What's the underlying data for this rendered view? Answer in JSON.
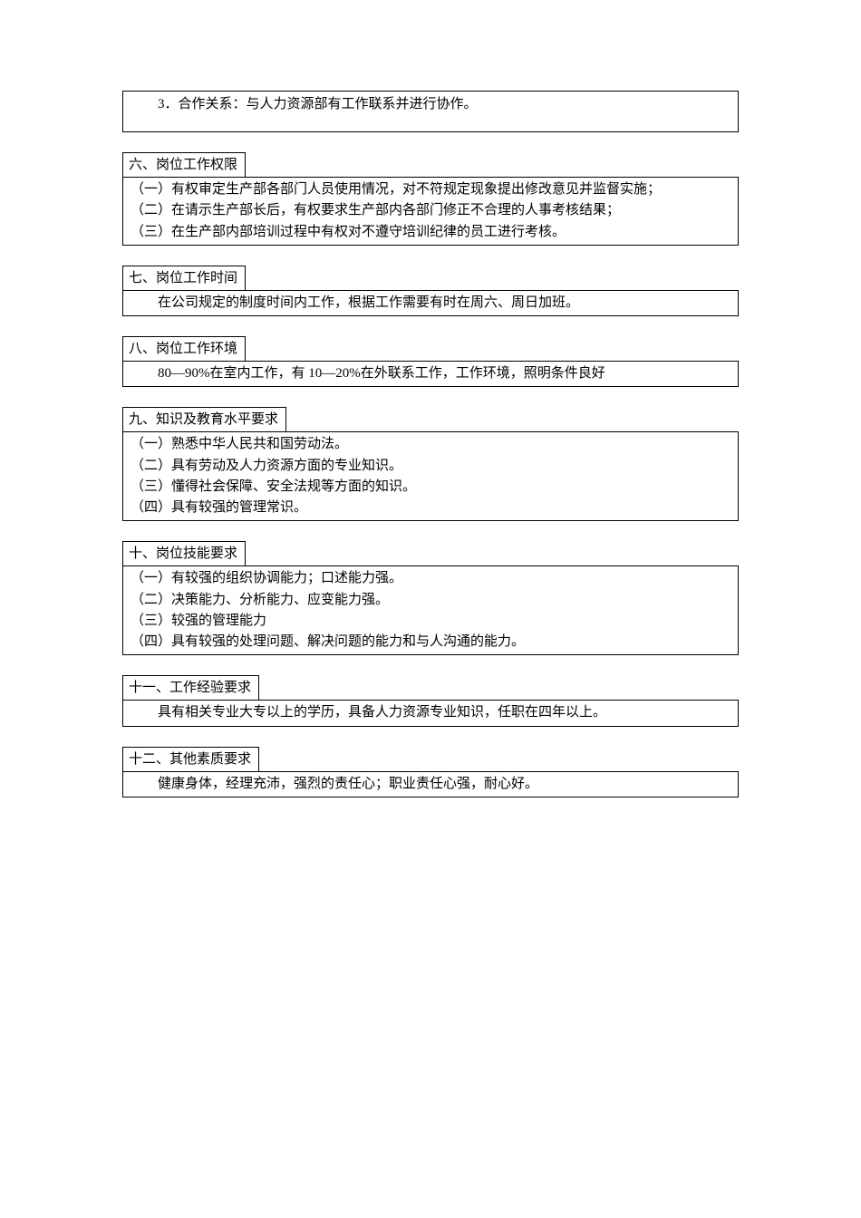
{
  "page": {
    "top_item": "3．合作关系：与人力资源部有工作联系并进行协作。",
    "sections": [
      {
        "heading": "六、岗位工作权限",
        "lines": [
          "（一）有权审定生产部各部门人员使用情况，对不符规定现象提出修改意见并监督实施；",
          "（二）在请示生产部长后，有权要求生产部内各部门修正不合理的人事考核结果；",
          "（三）在生产部内部培训过程中有权对不遵守培训纪律的员工进行考核。"
        ]
      },
      {
        "heading": "七、岗位工作时间",
        "lines": [
          "在公司规定的制度时间内工作，根据工作需要有时在周六、周日加班。"
        ],
        "indent": true
      },
      {
        "heading": "八、岗位工作环境",
        "lines": [
          "80—90%在室内工作，有 10—20%在外联系工作，工作环境，照明条件良好"
        ],
        "indent": true
      },
      {
        "heading": "九、知识及教育水平要求",
        "lines": [
          "（一）熟悉中华人民共和国劳动法。",
          "（二）具有劳动及人力资源方面的专业知识。",
          "（三）懂得社会保障、安全法规等方面的知识。",
          "（四）具有较强的管理常识。"
        ]
      },
      {
        "heading": "十、岗位技能要求",
        "lines": [
          "（一）有较强的组织协调能力；口述能力强。",
          "（二）决策能力、分析能力、应变能力强。",
          "（三）较强的管理能力",
          "（四）具有较强的处理问题、解决问题的能力和与人沟通的能力。"
        ]
      },
      {
        "heading": "十一、工作经验要求",
        "lines": [
          "具有相关专业大专以上的学历，具备人力资源专业知识，任职在四年以上。"
        ],
        "indent": true
      },
      {
        "heading": "十二、其他素质要求",
        "lines": [
          "健康身体，经理充沛，强烈的责任心；职业责任心强，耐心好。"
        ],
        "indent": true
      }
    ]
  }
}
